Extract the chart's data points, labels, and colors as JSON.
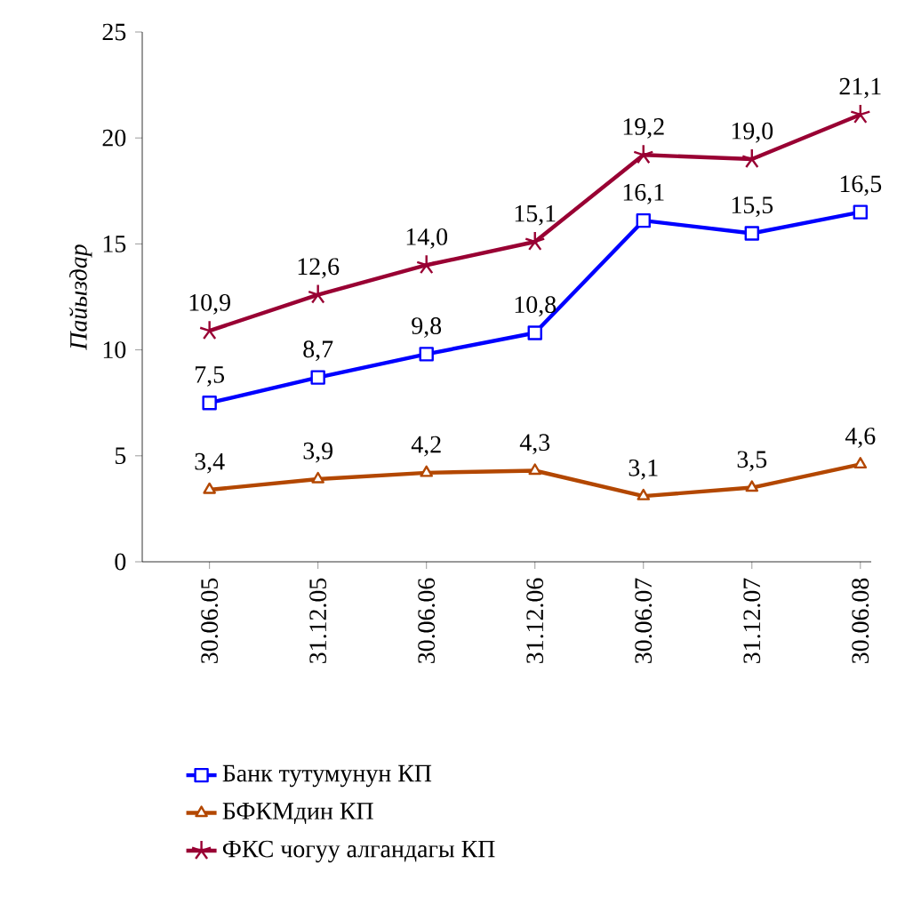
{
  "chart_data": {
    "type": "line",
    "ylabel": "*Пайыздар*",
    "categories": [
      "30.06.05",
      "31.12.05",
      "30.06.06",
      "31.12.06",
      "30.06.07",
      "31.12.07",
      "30.06.08"
    ],
    "series": [
      {
        "name": "Банк тутумунун КП",
        "color": "#0000ff",
        "marker": "square",
        "values": [
          7.5,
          8.7,
          9.8,
          10.8,
          16.1,
          15.5,
          16.5
        ],
        "value_labels": [
          "7,5",
          "8,7",
          "9,8",
          "10,8",
          "16,1",
          "15,5",
          "16,5"
        ]
      },
      {
        "name": "БФКМдин КП",
        "color": "#b34700",
        "marker": "triangle",
        "values": [
          3.4,
          3.9,
          4.2,
          4.3,
          3.1,
          3.5,
          4.6
        ],
        "value_labels": [
          "3,4",
          "3,9",
          "4,2",
          "4,3",
          "3,1",
          "3,5",
          "4,6"
        ]
      },
      {
        "name": "ФКС чогуу алгандагы КП",
        "color": "#990033",
        "marker": "cross",
        "values": [
          10.9,
          12.6,
          14.0,
          15.1,
          19.2,
          19.0,
          21.1
        ],
        "value_labels": [
          "10,9",
          "12,6",
          "14,0",
          "15,1",
          "19,2",
          "19,0",
          "21,1"
        ]
      }
    ],
    "ylim": [
      0,
      25
    ],
    "yticks": [
      0,
      5,
      10,
      15,
      20,
      25
    ],
    "grid": false,
    "legend": "bottom"
  }
}
